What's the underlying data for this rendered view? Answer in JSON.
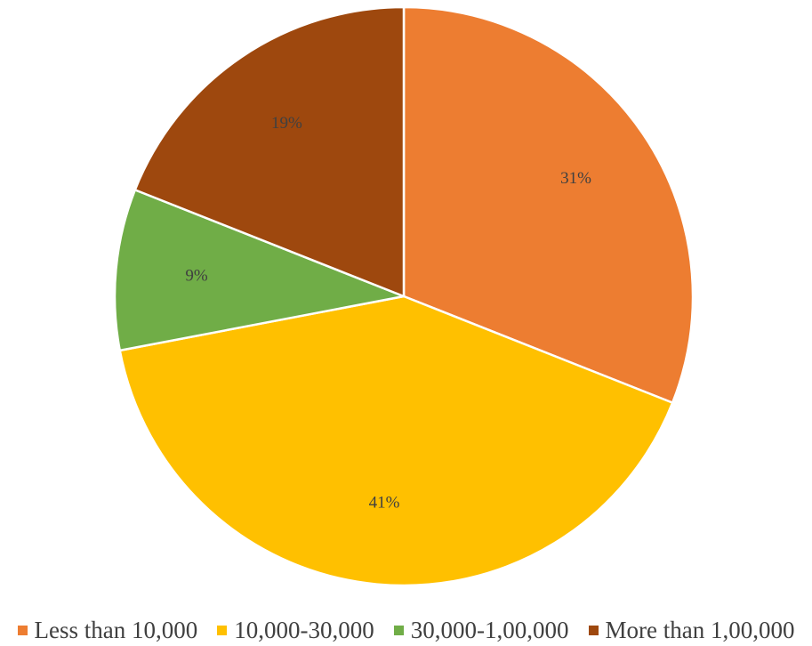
{
  "chart_data": {
    "type": "pie",
    "title": "",
    "categories": [
      "Less than 10,000",
      "10,000-30,000",
      "30,000-1,00,000",
      "More than 1,00,000"
    ],
    "values": [
      31,
      41,
      9,
      19
    ],
    "data_labels": [
      "31%",
      "41%",
      "9%",
      "19%"
    ],
    "colors": [
      "#ED7D31",
      "#FFC000",
      "#70AD47",
      "#9E480E"
    ],
    "start_angle_deg": 0,
    "direction": "clockwise",
    "legend_position": "bottom"
  }
}
